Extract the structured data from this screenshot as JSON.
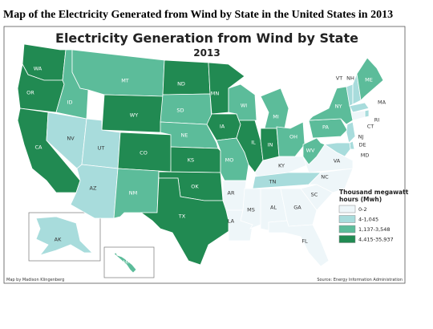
{
  "header": {
    "title": "Map of the Electricity Generated from Wind by State in the United States in 2013"
  },
  "map": {
    "title": "Electricity Generation from Wind by State",
    "subtitle": "2013",
    "states": [
      {
        "label": "WA",
        "bin": 3
      },
      {
        "label": "OR",
        "bin": 3
      },
      {
        "label": "CA",
        "bin": 3
      },
      {
        "label": "NV",
        "bin": 1
      },
      {
        "label": "ID",
        "bin": 2
      },
      {
        "label": "MT",
        "bin": 2
      },
      {
        "label": "WY",
        "bin": 3
      },
      {
        "label": "UT",
        "bin": 1
      },
      {
        "label": "AZ",
        "bin": 1
      },
      {
        "label": "CO",
        "bin": 3
      },
      {
        "label": "NM",
        "bin": 2
      },
      {
        "label": "ND",
        "bin": 3
      },
      {
        "label": "SD",
        "bin": 2
      },
      {
        "label": "NE",
        "bin": 2
      },
      {
        "label": "KS",
        "bin": 3
      },
      {
        "label": "OK",
        "bin": 3
      },
      {
        "label": "TX",
        "bin": 3
      },
      {
        "label": "MN",
        "bin": 3
      },
      {
        "label": "IA",
        "bin": 3
      },
      {
        "label": "MO",
        "bin": 2
      },
      {
        "label": "AR",
        "bin": 0
      },
      {
        "label": "LA",
        "bin": 0
      },
      {
        "label": "WI",
        "bin": 2
      },
      {
        "label": "IL",
        "bin": 3
      },
      {
        "label": "MI",
        "bin": 2
      },
      {
        "label": "IN",
        "bin": 3
      },
      {
        "label": "OH",
        "bin": 2
      },
      {
        "label": "KY",
        "bin": 0
      },
      {
        "label": "TN",
        "bin": 1
      },
      {
        "label": "MS",
        "bin": 0
      },
      {
        "label": "AL",
        "bin": 0
      },
      {
        "label": "GA",
        "bin": 0
      },
      {
        "label": "FL",
        "bin": 0
      },
      {
        "label": "SC",
        "bin": 0
      },
      {
        "label": "NC",
        "bin": 0
      },
      {
        "label": "VA",
        "bin": 0
      },
      {
        "label": "WV",
        "bin": 2
      },
      {
        "label": "PA",
        "bin": 2
      },
      {
        "label": "NY",
        "bin": 2
      },
      {
        "label": "VT",
        "bin": 1
      },
      {
        "label": "NH",
        "bin": 1
      },
      {
        "label": "ME",
        "bin": 2
      },
      {
        "label": "MA",
        "bin": 1
      },
      {
        "label": "RI",
        "bin": 1
      },
      {
        "label": "CT",
        "bin": 0
      },
      {
        "label": "NJ",
        "bin": 1
      },
      {
        "label": "DE",
        "bin": 1
      },
      {
        "label": "MD",
        "bin": 1
      },
      {
        "label": "AK",
        "bin": 1
      },
      {
        "label": "HI",
        "bin": 2
      }
    ],
    "legend": {
      "title": [
        "Thousand megawatt",
        "hours (Mwh)"
      ],
      "items": [
        {
          "label": "0-2",
          "color": "#eef6f9"
        },
        {
          "label": "4-1,045",
          "color": "#a8dcdc"
        },
        {
          "label": "1,137-3,548",
          "color": "#5cbc9a"
        },
        {
          "label": "4,415-35,937",
          "color": "#218a52"
        }
      ]
    },
    "credit": "Map by Madison Klingenberg",
    "source": "Source: Energy Information Administration"
  }
}
